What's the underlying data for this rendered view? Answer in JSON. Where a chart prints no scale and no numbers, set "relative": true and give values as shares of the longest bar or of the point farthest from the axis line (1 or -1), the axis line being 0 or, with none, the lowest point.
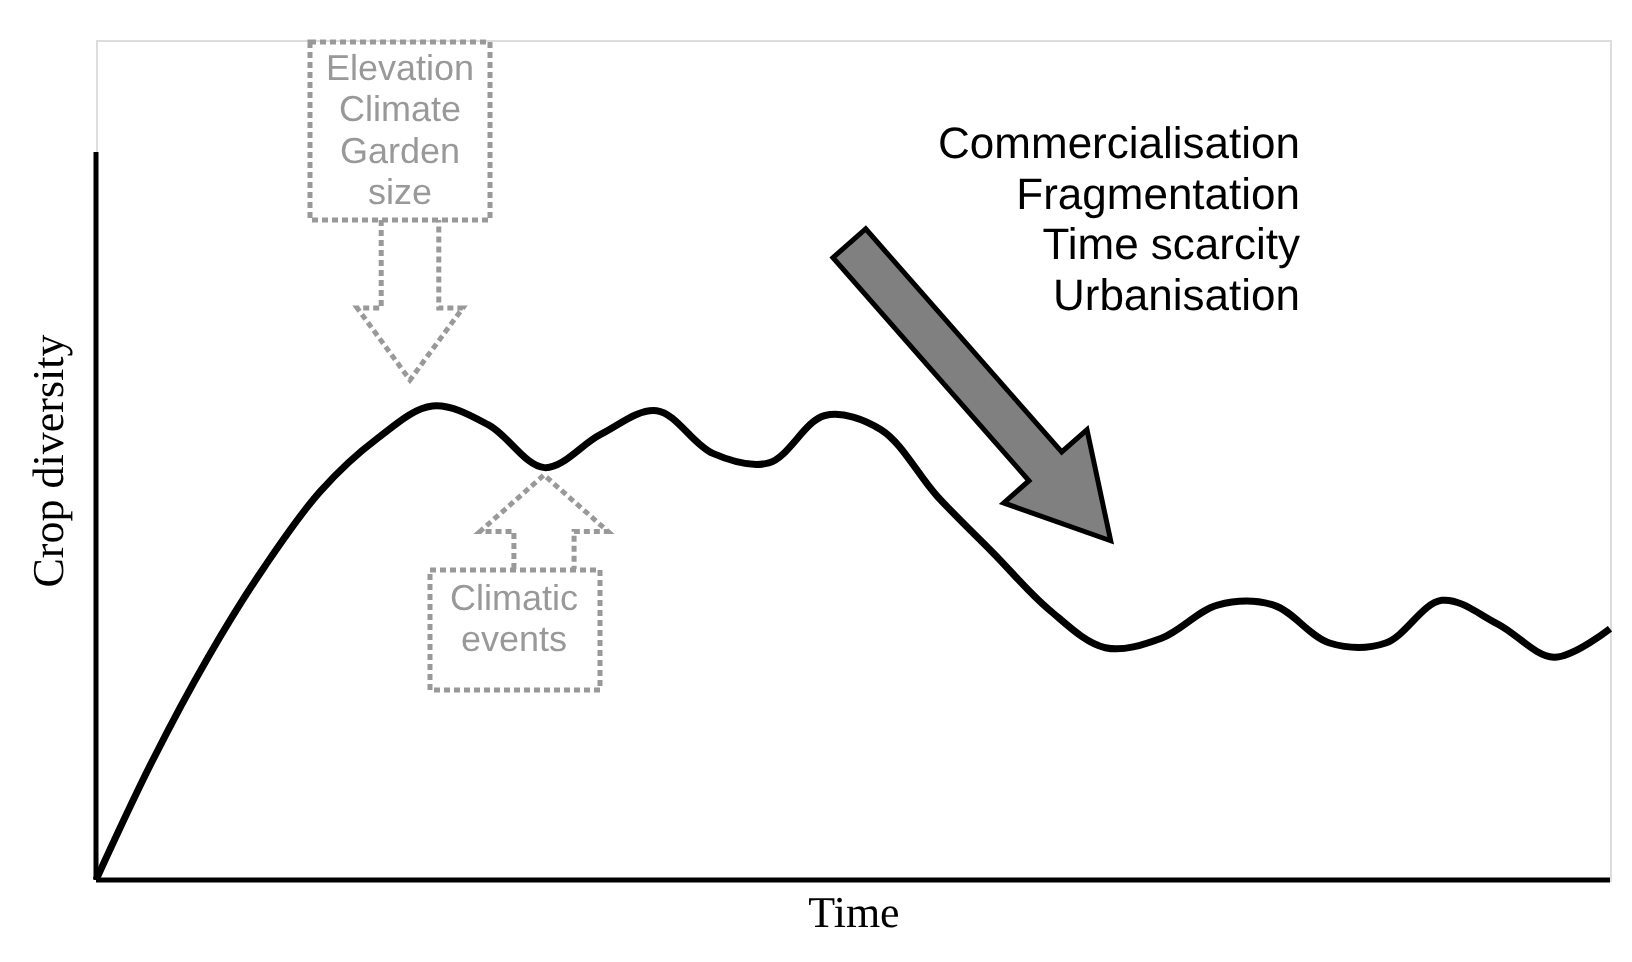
{
  "chart_data": {
    "type": "line",
    "relative": true,
    "xlabel": "Time",
    "ylabel": "Crop diversity",
    "categories": [
      null,
      null,
      null,
      null,
      null,
      null,
      null,
      null,
      null,
      null,
      null,
      null,
      null,
      null,
      null,
      null,
      null,
      null,
      null,
      null,
      null,
      null,
      null,
      null,
      null,
      null,
      null,
      null
    ],
    "series": [
      {
        "color": "#000000",
        "values": [
          0,
          0.25,
          0.47,
          0.66,
          0.82,
          0.93,
          1.0,
          0.96,
          0.87,
          0.94,
          0.99,
          0.9,
          0.88,
          0.98,
          0.95,
          0.81,
          0.69,
          0.57,
          0.49,
          0.51,
          0.58,
          0.58,
          0.5,
          0.5,
          0.59,
          0.54,
          0.47,
          0.53
        ]
      }
    ],
    "line_style": "solid",
    "marker": "none",
    "grid": false,
    "tick_labels": false,
    "annotations": [
      "Elevation\nClimate\nGarden\nsize",
      "Climatic\nevents",
      "Commercialisation\nFragmentation\nTime scarcity\nUrbanisation"
    ]
  }
}
